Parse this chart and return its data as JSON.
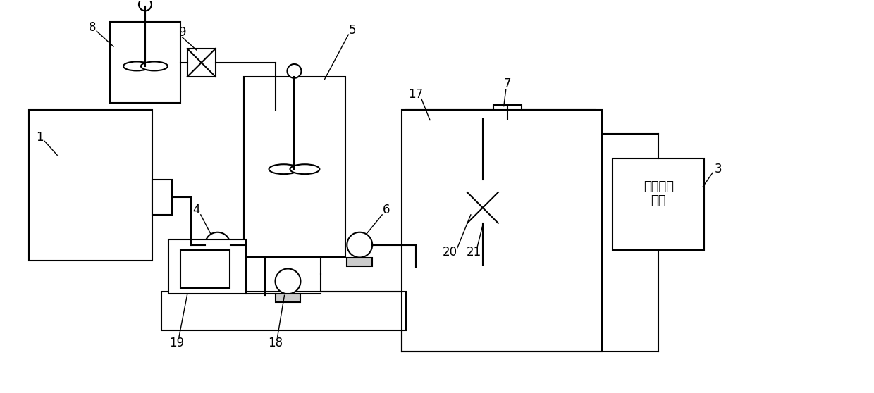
{
  "bg_color": "#ffffff",
  "line_color": "#000000",
  "lw": 1.5,
  "lw_thin": 1.0,
  "fig_width": 12.4,
  "fig_height": 5.58,
  "dpi": 100,
  "xmax": 1240,
  "ymax": 558,
  "chinese_label": "第二处理\n组件"
}
